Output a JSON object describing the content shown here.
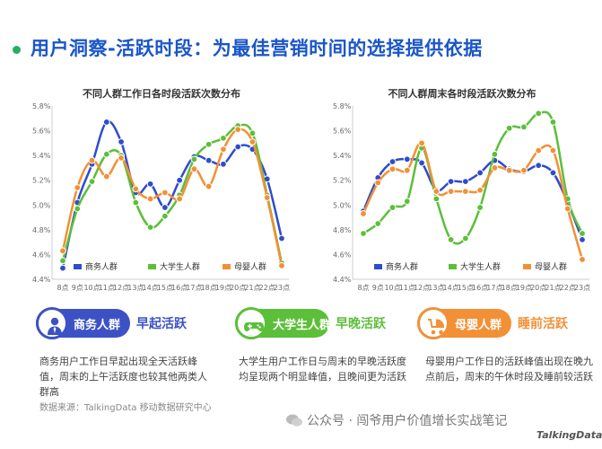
{
  "header": {
    "title": "用户洞察-活跃时段：为最佳营销时间的选择提供依据"
  },
  "chart_data": [
    {
      "type": "line",
      "title": "不同人群工作日各时段活跃次数分布",
      "categories": [
        "8点",
        "9点",
        "10点",
        "11点",
        "12点",
        "13点",
        "14点",
        "15点",
        "16点",
        "17点",
        "18点",
        "19点",
        "20点",
        "21点",
        "22点",
        "23点"
      ],
      "yticks": [
        "4.4%",
        "4.6%",
        "4.8%",
        "5.0%",
        "5.2%",
        "5.4%",
        "5.6%",
        "5.8%"
      ],
      "ylim": [
        4.4,
        5.8
      ],
      "series": [
        {
          "name": "商务人群",
          "color": "#2f4ccc",
          "values": [
            4.49,
            5.02,
            5.33,
            5.67,
            5.51,
            5.1,
            5.17,
            4.98,
            5.2,
            5.39,
            5.36,
            5.33,
            5.47,
            5.45,
            5.21,
            4.73
          ]
        },
        {
          "name": "大学生人群",
          "color": "#5cbf3a",
          "values": [
            4.55,
            4.97,
            5.19,
            5.41,
            5.4,
            5.02,
            4.82,
            4.91,
            5.08,
            5.37,
            5.49,
            5.54,
            5.64,
            5.58,
            5.08,
            4.53
          ]
        },
        {
          "name": "母婴人群",
          "color": "#f29036",
          "values": [
            4.63,
            5.14,
            5.36,
            5.23,
            5.38,
            5.13,
            5.05,
            5.1,
            5.05,
            5.29,
            5.15,
            5.45,
            5.61,
            5.51,
            5.06,
            4.51
          ]
        }
      ]
    },
    {
      "type": "line",
      "title": "不同人群周末各时段活跃次数分布",
      "categories": [
        "8点",
        "9点",
        "10点",
        "11点",
        "12点",
        "13点",
        "14点",
        "15点",
        "16点",
        "17点",
        "18点",
        "19点",
        "20点",
        "21点",
        "22点",
        "23点"
      ],
      "yticks": [
        "4.4%",
        "4.6%",
        "4.8%",
        "5.0%",
        "5.2%",
        "5.4%",
        "5.6%",
        "5.8%"
      ],
      "ylim": [
        4.4,
        5.8
      ],
      "series": [
        {
          "name": "商务人群",
          "color": "#2f4ccc",
          "values": [
            4.95,
            5.22,
            5.35,
            5.37,
            5.34,
            5.12,
            5.19,
            5.19,
            5.26,
            5.36,
            5.29,
            5.27,
            5.32,
            5.26,
            5.02,
            4.72
          ]
        },
        {
          "name": "大学生人群",
          "color": "#5cbf3a",
          "values": [
            4.77,
            4.85,
            4.98,
            5.03,
            5.46,
            5.05,
            4.72,
            4.73,
            4.98,
            5.41,
            5.62,
            5.63,
            5.74,
            5.67,
            5.05,
            4.77
          ]
        },
        {
          "name": "母婴人群",
          "color": "#f29036",
          "values": [
            4.93,
            5.18,
            5.29,
            5.28,
            5.5,
            5.11,
            5.11,
            5.11,
            5.12,
            5.3,
            5.28,
            5.28,
            5.44,
            5.44,
            4.97,
            4.56
          ]
        }
      ]
    }
  ],
  "categories_block": [
    {
      "name": "商务人群",
      "tag": "早起活跃",
      "color": "#3c52c4",
      "icon": "businessman-icon",
      "desc": "商务用户工作日早起出现全天活跃峰值，周末的上午活跃度也较其他两类人群高"
    },
    {
      "name": "大学生人群",
      "tag": "早晚活跃",
      "color": "#5cbf3a",
      "icon": "gamepad-icon",
      "desc": "大学生用户工作日与周末的早晚活跃度均呈现两个明显峰值，且晚间更为活跃"
    },
    {
      "name": "母婴人群",
      "tag": "睡前活跃",
      "color": "#f29036",
      "icon": "baby-stroller-icon",
      "desc": "母婴用户工作日的活跃峰值出现在晚九点前后，周末的午休时段及睡前较活跃"
    }
  ],
  "source": "数据来源：TalkingData 移动数据研究中心",
  "watermark": "公众号 · 闯爷用户价值增长实战笔记",
  "brand": "TalkingData"
}
